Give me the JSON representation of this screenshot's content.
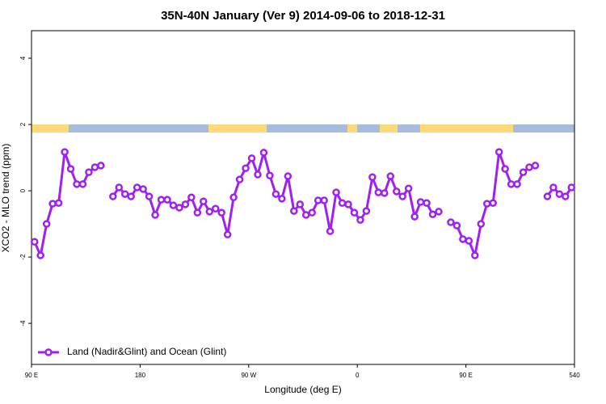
{
  "chart_data": {
    "type": "line",
    "title": "35N-40N January (Ver 9)   2014-09-06 to 2018-12-31",
    "x_label": "Longitude (deg E)",
    "y_label": "XCO2 - MLO trend (ppm)",
    "x": [
      92.5,
      97.5,
      102.5,
      107.5,
      112.5,
      117.5,
      122.5,
      127.5,
      132.5,
      137.5,
      142.5,
      147.5,
      152.5,
      157.5,
      162.5,
      167.5,
      172.5,
      177.5,
      182.5,
      187.5,
      192.5,
      197.5,
      202.5,
      207.5,
      212.5,
      217.5,
      222.5,
      227.5,
      232.5,
      237.5,
      242.5,
      247.5,
      252.5,
      257.5,
      262.5,
      267.5,
      272.5,
      277.5,
      282.5,
      287.5,
      292.5,
      297.5,
      302.5,
      307.5,
      312.5,
      317.5,
      322.5,
      327.5,
      332.5,
      337.5,
      342.5,
      347.5,
      352.5,
      357.5,
      362.5,
      367.5,
      372.5,
      377.5,
      382.5,
      387.5,
      392.5,
      397.5,
      402.5,
      407.5,
      412.5,
      417.5,
      422.5,
      427.5,
      432.5,
      437.5,
      442.5,
      447.5,
      452.5,
      457.5,
      462.5,
      467.5,
      472.5,
      477.5,
      482.5,
      487.5,
      492.5,
      497.5,
      502.5,
      507.5,
      512.5,
      517.5,
      522.5,
      527.5,
      532.5,
      537.5
    ],
    "series": [
      {
        "name": "Land (Nadir&Glint) and Ocean (Glint)",
        "color": "#a020f0",
        "values": [
          -1.54,
          -1.95,
          -1.0,
          -0.39,
          -0.37,
          1.17,
          0.66,
          0.2,
          0.2,
          0.56,
          0.71,
          0.76,
          null,
          -0.17,
          0.1,
          -0.1,
          -0.17,
          0.1,
          0.05,
          -0.17,
          -0.73,
          -0.27,
          -0.27,
          -0.44,
          -0.51,
          -0.41,
          -0.2,
          -0.66,
          -0.32,
          -0.63,
          -0.54,
          -0.66,
          -1.32,
          -0.2,
          0.34,
          0.68,
          0.98,
          0.49,
          1.15,
          0.46,
          -0.1,
          -0.24,
          0.44,
          -0.61,
          -0.41,
          -0.73,
          -0.66,
          -0.29,
          -0.29,
          -1.22,
          -0.05,
          -0.37,
          -0.41,
          -0.66,
          -0.88,
          -0.61,
          0.41,
          -0.05,
          -0.07,
          0.44,
          -0.02,
          -0.17,
          0.07,
          -0.78,
          -0.34,
          -0.37,
          -0.71,
          -0.63,
          null,
          -0.95,
          -1.05,
          -1.46,
          -1.51,
          -1.95,
          -1.0,
          -0.39,
          -0.37,
          1.17,
          0.66,
          0.2,
          0.2,
          0.56,
          0.71,
          0.76,
          null,
          -0.17,
          0.1,
          -0.1,
          -0.17,
          0.1
        ]
      }
    ],
    "xlim": [
      90,
      540
    ],
    "xticks": [
      {
        "value": 90,
        "label": "90 E"
      },
      180,
      {
        "value": 270,
        "label": "90 W"
      },
      {
        "value": 360,
        "label": "0"
      },
      {
        "value": 450,
        "label": "90 E"
      },
      540
    ],
    "ylim": [
      -5.24,
      4.83
    ],
    "yticks": [
      -4,
      -2,
      0,
      2,
      4
    ],
    "legend": "bottomleft"
  }
}
